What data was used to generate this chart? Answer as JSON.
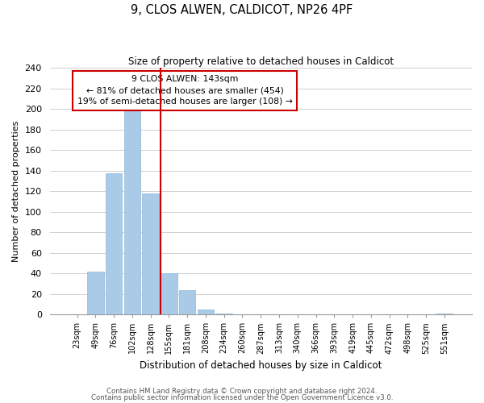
{
  "title": "9, CLOS ALWEN, CALDICOT, NP26 4PF",
  "subtitle": "Size of property relative to detached houses in Caldicot",
  "xlabel": "Distribution of detached houses by size in Caldicot",
  "ylabel": "Number of detached properties",
  "bar_labels": [
    "23sqm",
    "49sqm",
    "76sqm",
    "102sqm",
    "128sqm",
    "155sqm",
    "181sqm",
    "208sqm",
    "234sqm",
    "260sqm",
    "287sqm",
    "313sqm",
    "340sqm",
    "366sqm",
    "393sqm",
    "419sqm",
    "445sqm",
    "472sqm",
    "498sqm",
    "525sqm",
    "551sqm"
  ],
  "bar_heights": [
    0,
    42,
    137,
    201,
    118,
    40,
    24,
    5,
    1,
    0,
    0,
    0,
    0,
    0,
    0,
    0,
    0,
    0,
    0,
    0,
    1
  ],
  "bar_color": "#aacbe8",
  "bar_edge_color": "#9bbdd8",
  "vline_color": "#cc0000",
  "ylim": [
    0,
    240
  ],
  "yticks": [
    0,
    20,
    40,
    60,
    80,
    100,
    120,
    140,
    160,
    180,
    200,
    220,
    240
  ],
  "annotation_title": "9 CLOS ALWEN: 143sqm",
  "annotation_line1": "← 81% of detached houses are smaller (454)",
  "annotation_line2": "19% of semi-detached houses are larger (108) →",
  "annotation_box_color": "#ffffff",
  "annotation_border_color": "#cc0000",
  "footer1": "Contains HM Land Registry data © Crown copyright and database right 2024.",
  "footer2": "Contains public sector information licensed under the Open Government Licence v3.0.",
  "grid_color": "#d0d0d0",
  "background_color": "#ffffff"
}
